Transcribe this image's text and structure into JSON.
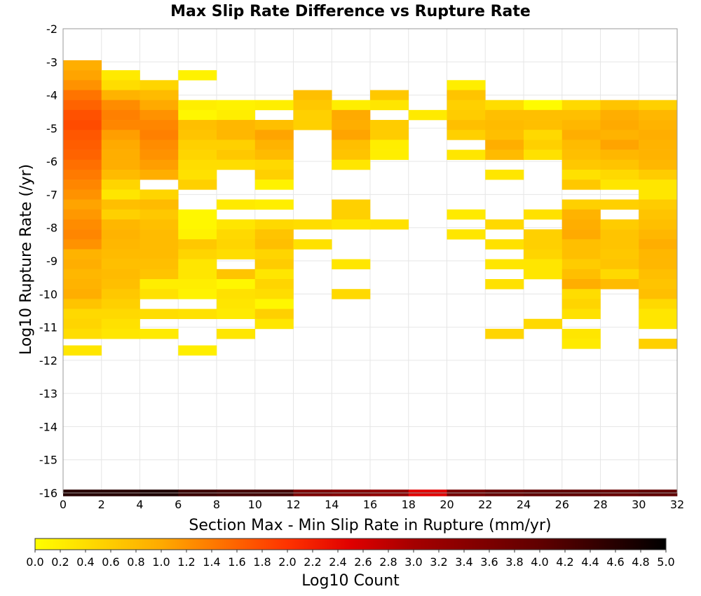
{
  "chart_data": {
    "type": "heatmap",
    "title": "Max Slip Rate Difference vs Rupture Rate",
    "xlabel": "Section Max - Min Slip Rate in Rupture (mm/yr)",
    "ylabel": "Log10 Rupture Rate (/yr)",
    "xlim": [
      0,
      32
    ],
    "ylim": [
      -16,
      -2
    ],
    "x_ticks": [
      "0",
      "2",
      "4",
      "6",
      "8",
      "10",
      "12",
      "14",
      "16",
      "18",
      "20",
      "22",
      "24",
      "26",
      "28",
      "30",
      "32"
    ],
    "y_ticks": [
      "-2",
      "-3",
      "-4",
      "-5",
      "-6",
      "-7",
      "-8",
      "-9",
      "-10",
      "-11",
      "-12",
      "-13",
      "-14",
      "-15",
      "-16"
    ],
    "grid": true,
    "bin_width_x": 2,
    "bin_height_y": 0.3,
    "colorbar": {
      "label": "Log10 Count",
      "min": 0.0,
      "max": 5.0,
      "ticks": [
        "0.0",
        "0.2",
        "0.4",
        "0.6",
        "0.8",
        "1.0",
        "1.2",
        "1.4",
        "1.6",
        "1.8",
        "2.0",
        "2.2",
        "2.4",
        "2.6",
        "2.8",
        "3.0",
        "3.2",
        "3.4",
        "3.6",
        "3.8",
        "4.0",
        "4.2",
        "4.4",
        "4.6",
        "4.8",
        "5.0"
      ],
      "stops": [
        {
          "v": 0.0,
          "color": "#ffff00"
        },
        {
          "v": 1.0,
          "color": "#ffaa00"
        },
        {
          "v": 2.0,
          "color": "#ff3300"
        },
        {
          "v": 2.5,
          "color": "#e00000"
        },
        {
          "v": 3.0,
          "color": "#a50000"
        },
        {
          "v": 4.0,
          "color": "#600000"
        },
        {
          "v": 5.0,
          "color": "#000000"
        }
      ]
    },
    "columns": [
      {
        "x": 0,
        "bins": [
          [
            -3.1,
            0.95
          ],
          [
            -3.4,
            1.05
          ],
          [
            -3.7,
            1.2
          ],
          [
            -4.0,
            1.45
          ],
          [
            -4.3,
            1.6
          ],
          [
            -4.6,
            1.75
          ],
          [
            -4.9,
            1.8
          ],
          [
            -5.2,
            1.7
          ],
          [
            -5.5,
            1.65
          ],
          [
            -5.8,
            1.6
          ],
          [
            -6.1,
            1.5
          ],
          [
            -6.4,
            1.4
          ],
          [
            -6.7,
            1.3
          ],
          [
            -7.0,
            1.2
          ],
          [
            -7.3,
            1.05
          ],
          [
            -7.6,
            1.15
          ],
          [
            -7.9,
            1.25
          ],
          [
            -8.2,
            1.3
          ],
          [
            -8.5,
            1.2
          ],
          [
            -8.8,
            0.9
          ],
          [
            -9.1,
            0.95
          ],
          [
            -9.4,
            0.85
          ],
          [
            -9.7,
            0.9
          ],
          [
            -10.0,
            0.95
          ],
          [
            -10.3,
            0.7
          ],
          [
            -10.6,
            0.45
          ],
          [
            -10.9,
            0.5
          ],
          [
            -11.2,
            0.4
          ],
          [
            -11.7,
            0.3
          ]
        ]
      },
      {
        "x": 2,
        "bins": [
          [
            -3.4,
            0.25
          ],
          [
            -3.7,
            0.4
          ],
          [
            -4.0,
            0.9
          ],
          [
            -4.3,
            1.25
          ],
          [
            -4.6,
            1.35
          ],
          [
            -4.9,
            1.3
          ],
          [
            -5.2,
            1.1
          ],
          [
            -5.5,
            1.0
          ],
          [
            -5.8,
            0.95
          ],
          [
            -6.1,
            0.95
          ],
          [
            -6.4,
            0.8
          ],
          [
            -6.7,
            0.5
          ],
          [
            -7.0,
            0.3
          ],
          [
            -7.3,
            0.75
          ],
          [
            -7.6,
            0.55
          ],
          [
            -7.9,
            0.85
          ],
          [
            -8.2,
            0.9
          ],
          [
            -8.5,
            0.85
          ],
          [
            -8.8,
            0.8
          ],
          [
            -9.1,
            0.75
          ],
          [
            -9.4,
            0.8
          ],
          [
            -9.7,
            0.75
          ],
          [
            -10.0,
            0.65
          ],
          [
            -10.3,
            0.55
          ],
          [
            -10.6,
            0.45
          ],
          [
            -10.9,
            0.35
          ],
          [
            -11.2,
            0.3
          ]
        ]
      },
      {
        "x": 4,
        "bins": [
          [
            -3.7,
            0.5
          ],
          [
            -4.0,
            0.8
          ],
          [
            -4.3,
            1.0
          ],
          [
            -4.6,
            1.2
          ],
          [
            -4.9,
            1.3
          ],
          [
            -5.2,
            1.35
          ],
          [
            -5.5,
            1.25
          ],
          [
            -5.8,
            1.2
          ],
          [
            -6.1,
            1.1
          ],
          [
            -6.4,
            0.95
          ],
          [
            -7.0,
            0.5
          ],
          [
            -7.3,
            0.8
          ],
          [
            -7.6,
            0.65
          ],
          [
            -7.9,
            0.75
          ],
          [
            -8.2,
            0.8
          ],
          [
            -8.5,
            0.8
          ],
          [
            -8.8,
            0.8
          ],
          [
            -9.1,
            0.75
          ],
          [
            -9.4,
            0.7
          ],
          [
            -9.7,
            0.2
          ],
          [
            -10.0,
            0.35
          ],
          [
            -10.6,
            0.4
          ],
          [
            -11.2,
            0.25
          ]
        ]
      },
      {
        "x": 6,
        "bins": [
          [
            -3.4,
            0.15
          ],
          [
            -4.3,
            0.2
          ],
          [
            -4.6,
            0.1
          ],
          [
            -4.9,
            0.75
          ],
          [
            -5.2,
            0.7
          ],
          [
            -5.5,
            0.55
          ],
          [
            -5.8,
            0.5
          ],
          [
            -6.1,
            0.4
          ],
          [
            -6.4,
            0.35
          ],
          [
            -6.7,
            0.55
          ],
          [
            -7.6,
            0.1
          ],
          [
            -7.9,
            0.1
          ],
          [
            -8.2,
            0.15
          ],
          [
            -8.5,
            0.65
          ],
          [
            -8.8,
            0.5
          ],
          [
            -9.1,
            0.3
          ],
          [
            -9.4,
            0.3
          ],
          [
            -9.7,
            0.2
          ],
          [
            -10.0,
            0.15
          ],
          [
            -10.6,
            0.35
          ],
          [
            -11.7,
            0.2
          ]
        ]
      },
      {
        "x": 8,
        "bins": [
          [
            -4.3,
            0.15
          ],
          [
            -4.6,
            0.2
          ],
          [
            -4.9,
            0.85
          ],
          [
            -5.2,
            0.85
          ],
          [
            -5.5,
            0.55
          ],
          [
            -5.8,
            0.65
          ],
          [
            -6.1,
            0.4
          ],
          [
            -7.3,
            0.25
          ],
          [
            -7.9,
            0.3
          ],
          [
            -8.2,
            0.45
          ],
          [
            -8.5,
            0.5
          ],
          [
            -8.8,
            0.4
          ],
          [
            -9.4,
            0.7
          ],
          [
            -9.7,
            0.1
          ],
          [
            -10.0,
            0.35
          ],
          [
            -10.3,
            0.3
          ],
          [
            -10.6,
            0.25
          ],
          [
            -11.2,
            0.3
          ]
        ]
      },
      {
        "x": 10,
        "bins": [
          [
            -4.3,
            0.2
          ],
          [
            -4.9,
            0.75
          ],
          [
            -5.2,
            1.05
          ],
          [
            -5.5,
            0.9
          ],
          [
            -5.8,
            0.8
          ],
          [
            -6.1,
            0.45
          ],
          [
            -6.4,
            0.55
          ],
          [
            -6.7,
            0.15
          ],
          [
            -7.3,
            0.2
          ],
          [
            -7.9,
            0.45
          ],
          [
            -8.2,
            0.7
          ],
          [
            -8.5,
            0.75
          ],
          [
            -8.8,
            0.5
          ],
          [
            -9.1,
            0.6
          ],
          [
            -9.4,
            0.3
          ],
          [
            -9.7,
            0.5
          ],
          [
            -10.0,
            0.4
          ],
          [
            -10.3,
            0.1
          ],
          [
            -10.6,
            0.55
          ],
          [
            -10.9,
            0.3
          ]
        ]
      },
      {
        "x": 12,
        "bins": [
          [
            -4.0,
            0.75
          ],
          [
            -4.3,
            0.65
          ],
          [
            -4.6,
            0.55
          ],
          [
            -4.9,
            0.55
          ],
          [
            -7.9,
            0.4
          ],
          [
            -8.5,
            0.35
          ]
        ]
      },
      {
        "x": 14,
        "bins": [
          [
            -4.3,
            0.2
          ],
          [
            -4.6,
            1.0
          ],
          [
            -4.9,
            0.95
          ],
          [
            -5.2,
            1.05
          ],
          [
            -5.5,
            0.75
          ],
          [
            -5.8,
            0.7
          ],
          [
            -6.1,
            0.3
          ],
          [
            -7.3,
            0.55
          ],
          [
            -7.6,
            0.55
          ],
          [
            -7.9,
            0.3
          ],
          [
            -9.1,
            0.3
          ],
          [
            -10.0,
            0.45
          ]
        ]
      },
      {
        "x": 16,
        "bins": [
          [
            -4.0,
            0.65
          ],
          [
            -4.3,
            0.3
          ],
          [
            -4.9,
            0.6
          ],
          [
            -5.2,
            0.6
          ],
          [
            -5.5,
            0.2
          ],
          [
            -5.8,
            0.2
          ],
          [
            -7.9,
            0.35
          ]
        ]
      },
      {
        "x": 18,
        "bins": [
          [
            -4.6,
            0.25
          ]
        ]
      },
      {
        "x": 20,
        "bins": [
          [
            -3.7,
            0.2
          ],
          [
            -4.0,
            0.7
          ],
          [
            -4.3,
            0.55
          ],
          [
            -4.6,
            0.6
          ],
          [
            -4.9,
            0.75
          ],
          [
            -5.2,
            0.55
          ],
          [
            -5.8,
            0.3
          ],
          [
            -7.6,
            0.25
          ],
          [
            -8.2,
            0.3
          ]
        ]
      },
      {
        "x": 22,
        "bins": [
          [
            -4.3,
            0.4
          ],
          [
            -4.6,
            0.75
          ],
          [
            -4.9,
            0.8
          ],
          [
            -5.2,
            0.75
          ],
          [
            -5.5,
            0.95
          ],
          [
            -5.8,
            0.8
          ],
          [
            -6.4,
            0.3
          ],
          [
            -7.9,
            0.45
          ],
          [
            -8.5,
            0.35
          ],
          [
            -9.1,
            0.3
          ],
          [
            -9.7,
            0.35
          ],
          [
            -11.2,
            0.5
          ]
        ]
      },
      {
        "x": 24,
        "bins": [
          [
            -4.3,
            0.05
          ],
          [
            -4.6,
            0.75
          ],
          [
            -4.9,
            0.75
          ],
          [
            -5.2,
            0.45
          ],
          [
            -5.5,
            0.55
          ],
          [
            -5.8,
            0.35
          ],
          [
            -7.6,
            0.35
          ],
          [
            -8.2,
            0.55
          ],
          [
            -8.5,
            0.55
          ],
          [
            -8.8,
            0.5
          ],
          [
            -9.1,
            0.3
          ],
          [
            -9.4,
            0.3
          ],
          [
            -10.9,
            0.45
          ]
        ]
      },
      {
        "x": 26,
        "bins": [
          [
            -4.3,
            0.45
          ],
          [
            -4.6,
            0.75
          ],
          [
            -4.9,
            0.85
          ],
          [
            -5.2,
            0.95
          ],
          [
            -5.5,
            0.8
          ],
          [
            -5.8,
            0.75
          ],
          [
            -6.1,
            0.65
          ],
          [
            -6.4,
            0.35
          ],
          [
            -6.7,
            0.65
          ],
          [
            -7.3,
            0.55
          ],
          [
            -7.6,
            0.9
          ],
          [
            -7.9,
            0.95
          ],
          [
            -8.2,
            1.0
          ],
          [
            -8.5,
            0.75
          ],
          [
            -8.8,
            0.75
          ],
          [
            -9.1,
            0.6
          ],
          [
            -9.4,
            0.75
          ],
          [
            -9.7,
            0.95
          ],
          [
            -10.0,
            0.4
          ],
          [
            -10.3,
            0.5
          ],
          [
            -10.6,
            0.35
          ],
          [
            -11.2,
            0.3
          ],
          [
            -11.5,
            0.25
          ]
        ]
      },
      {
        "x": 28,
        "bins": [
          [
            -4.3,
            0.7
          ],
          [
            -4.6,
            0.95
          ],
          [
            -4.9,
            1.0
          ],
          [
            -5.2,
            0.9
          ],
          [
            -5.5,
            1.05
          ],
          [
            -5.8,
            0.85
          ],
          [
            -6.1,
            0.7
          ],
          [
            -6.4,
            0.45
          ],
          [
            -6.7,
            0.3
          ],
          [
            -7.3,
            0.55
          ],
          [
            -7.9,
            0.6
          ],
          [
            -8.2,
            0.7
          ],
          [
            -8.5,
            0.7
          ],
          [
            -8.8,
            0.65
          ],
          [
            -9.1,
            0.7
          ],
          [
            -9.4,
            0.45
          ],
          [
            -9.7,
            0.8
          ]
        ]
      },
      {
        "x": 30,
        "bins": [
          [
            -4.3,
            0.55
          ],
          [
            -4.6,
            0.85
          ],
          [
            -4.9,
            0.9
          ],
          [
            -5.2,
            0.95
          ],
          [
            -5.5,
            0.9
          ],
          [
            -5.8,
            0.9
          ],
          [
            -6.1,
            0.85
          ],
          [
            -6.4,
            0.6
          ],
          [
            -6.7,
            0.3
          ],
          [
            -7.0,
            0.3
          ],
          [
            -7.3,
            0.6
          ],
          [
            -7.6,
            0.7
          ],
          [
            -7.9,
            0.75
          ],
          [
            -8.2,
            0.85
          ],
          [
            -8.5,
            0.95
          ],
          [
            -8.8,
            0.85
          ],
          [
            -9.1,
            0.85
          ],
          [
            -9.4,
            0.75
          ],
          [
            -9.7,
            0.7
          ],
          [
            -10.0,
            0.75
          ],
          [
            -10.3,
            0.45
          ],
          [
            -10.6,
            0.3
          ],
          [
            -10.9,
            0.3
          ],
          [
            -11.5,
            0.55
          ]
        ]
      }
    ],
    "bottom_row": {
      "y": -16,
      "values": [
        4.6,
        4.6,
        4.7,
        4.4,
        4.3,
        4.3,
        3.6,
        3.5,
        3.3,
        2.5,
        3.7,
        3.9,
        4.0,
        4.0,
        3.9,
        4.0
      ]
    }
  }
}
